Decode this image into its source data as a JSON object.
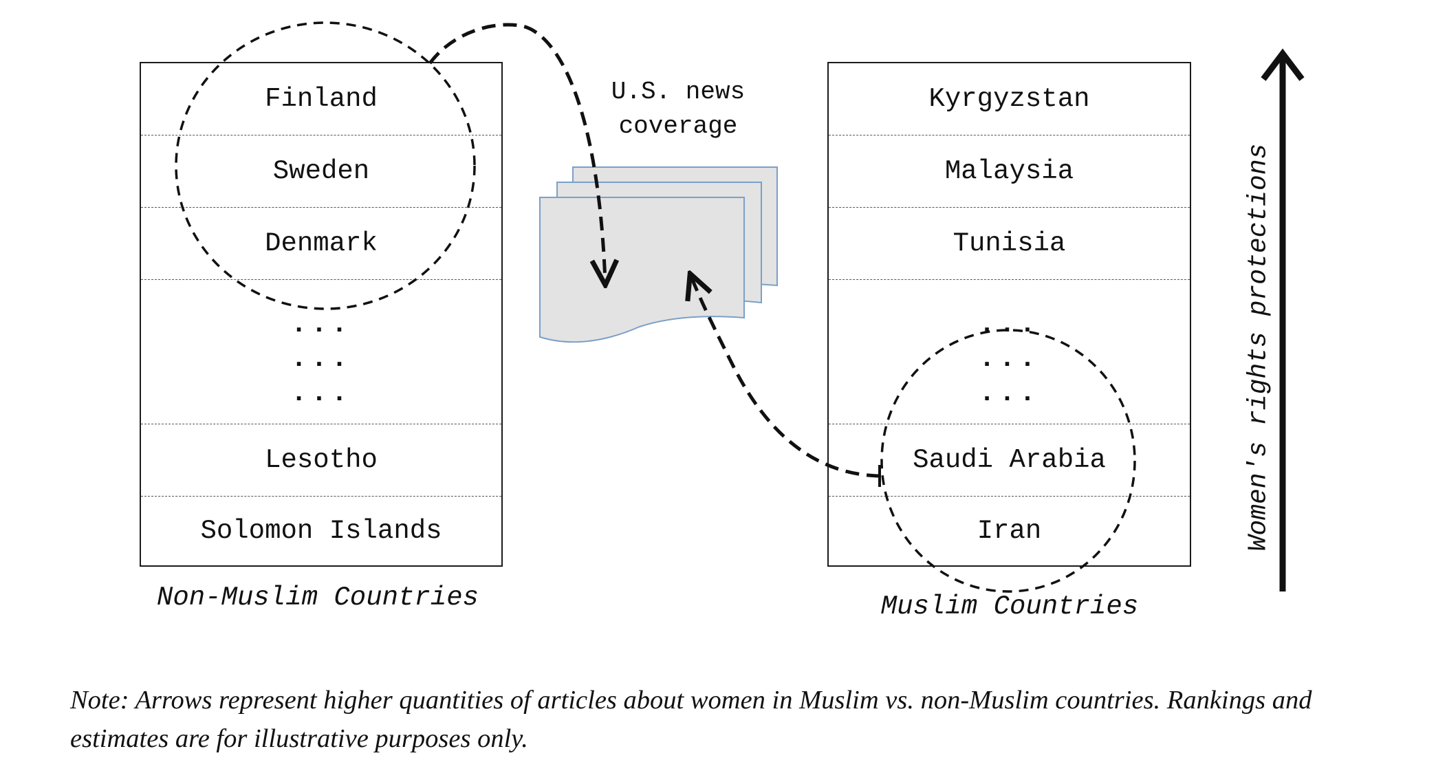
{
  "left_table": {
    "rows": [
      "Finland",
      "Sweden",
      "Denmark",
      "...\n...\n...",
      "Lesotho",
      "Solomon Islands"
    ],
    "caption": "Non-Muslim Countries"
  },
  "right_table": {
    "rows": [
      "Kyrgyzstan",
      "Malaysia",
      "Tunisia",
      "...\n...\n...",
      "Saudi Arabia",
      "Iran"
    ],
    "caption": "Muslim Countries"
  },
  "coverage_label": [
    "U.S. news",
    "coverage"
  ],
  "axis_label": "Women's rights protections",
  "note": "Note: Arrows represent higher quantities of articles about women in Muslim vs. non-Muslim countries. Rankings and estimates are for illustrative purposes only.",
  "colors": {
    "line": "#111111",
    "document_fill": "#e3e3e3",
    "document_stroke": "#7aa0c8"
  },
  "icons": [
    "document-stack-icon",
    "dashed-arrow-icon",
    "vertical-arrow-icon"
  ]
}
